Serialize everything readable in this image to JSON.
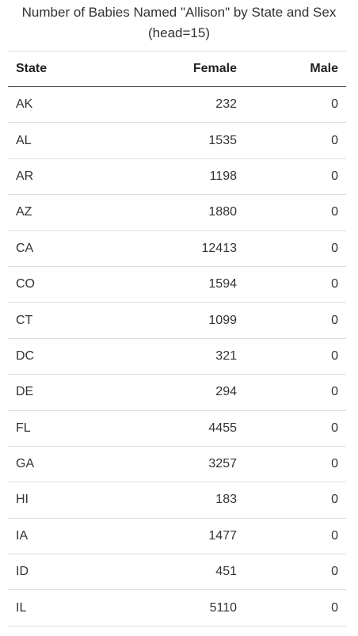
{
  "caption": {
    "line1": "Number of Babies Named \"Allison\" by State and Sex",
    "line2": "(head=15)"
  },
  "chart_data": {
    "type": "table",
    "title": "Number of Babies Named \"Allison\" by State and Sex (head=15)",
    "columns": [
      "State",
      "Female",
      "Male"
    ],
    "rows": [
      {
        "state": "AK",
        "female": "232",
        "male": "0"
      },
      {
        "state": "AL",
        "female": "1535",
        "male": "0"
      },
      {
        "state": "AR",
        "female": "1198",
        "male": "0"
      },
      {
        "state": "AZ",
        "female": "1880",
        "male": "0"
      },
      {
        "state": "CA",
        "female": "12413",
        "male": "0"
      },
      {
        "state": "CO",
        "female": "1594",
        "male": "0"
      },
      {
        "state": "CT",
        "female": "1099",
        "male": "0"
      },
      {
        "state": "DC",
        "female": "321",
        "male": "0"
      },
      {
        "state": "DE",
        "female": "294",
        "male": "0"
      },
      {
        "state": "FL",
        "female": "4455",
        "male": "0"
      },
      {
        "state": "GA",
        "female": "3257",
        "male": "0"
      },
      {
        "state": "HI",
        "female": "183",
        "male": "0"
      },
      {
        "state": "IA",
        "female": "1477",
        "male": "0"
      },
      {
        "state": "ID",
        "female": "451",
        "male": "0"
      },
      {
        "state": "IL",
        "female": "5110",
        "male": "0"
      }
    ]
  }
}
